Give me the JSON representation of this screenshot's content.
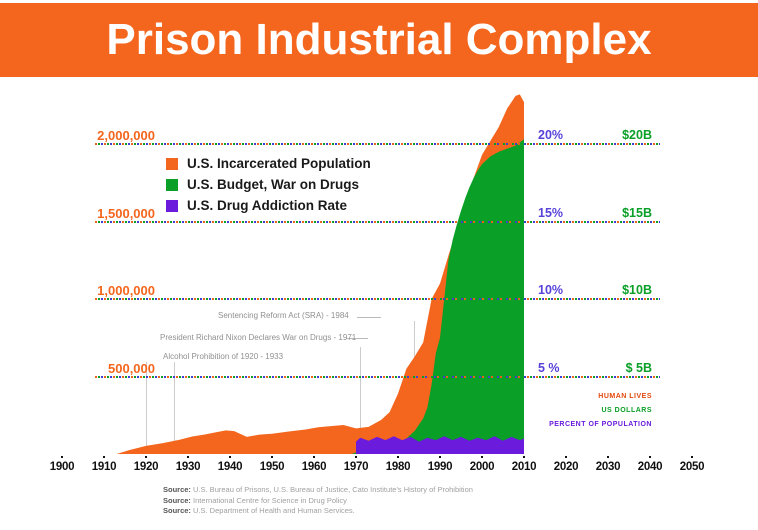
{
  "header": {
    "title": "Prison Industrial Complex",
    "banner_color": "#f4661d"
  },
  "legend": {
    "items": [
      {
        "label": "U.S. Incarcerated Population",
        "color": "#f4661d"
      },
      {
        "label": "U.S. Budget, War on Drugs",
        "color": "#0a9f27"
      },
      {
        "label": "U.S. Drug Addiction Rate",
        "color": "#6a1bdb"
      }
    ]
  },
  "axes": {
    "left_ticks": [
      "2,000,000",
      "1,500,000",
      "1,000,000",
      "500,000"
    ],
    "percent_ticks": [
      "20%",
      "15%",
      "10%",
      "5 %"
    ],
    "dollar_ticks": [
      "$20B",
      "$15B",
      "$10B",
      "$ 5B"
    ],
    "x_ticks": [
      "1900",
      "1910",
      "1920",
      "1930",
      "1940",
      "1950",
      "1960",
      "1970",
      "1980",
      "1990",
      "2000",
      "2010",
      "2020",
      "2030",
      "2040",
      "2050"
    ],
    "unit_labels": [
      {
        "text": "HUMAN LIVES",
        "color": "#e2470d"
      },
      {
        "text": "US DOLLARS",
        "color": "#0a9f27"
      },
      {
        "text": "PERCENT OF POPULATION",
        "color": "#6a1bdb"
      }
    ]
  },
  "annotations": [
    {
      "text": "Sentencing Reform Act (SRA) - 1984",
      "year": 1984
    },
    {
      "text": "President Richard Nixon Declares War on Drugs - 1971",
      "year": 1971
    },
    {
      "text": "Alcohol Prohibition of 1920 - 1933",
      "year_start": 1920,
      "year_end": 1933
    }
  ],
  "source_label": "Source:",
  "sources": [
    "U.S. Bureau of Prisons, U.S. Bureau of Justice, Cato Institute's History of Prohibition",
    "International Centre for Science in Drug Policy",
    "U.S. Department of Health and Human Services."
  ],
  "chart_data": {
    "type": "area",
    "title": "Prison Industrial Complex",
    "x_range": [
      1900,
      2050
    ],
    "x_tick_interval": 10,
    "grid": "horizontal dashed tricolor",
    "legend_position": "top-left inside plot",
    "axis_scales": {
      "population_ticks": [
        500000,
        1000000,
        1500000,
        2000000
      ],
      "percent_ticks": [
        5,
        10,
        15,
        20
      ],
      "dollar_ticks_billions": [
        5,
        10,
        15,
        20
      ],
      "note": "all three scales share the same gridlines"
    },
    "series": [
      {
        "name": "U.S. Incarcerated Population",
        "unit": "people",
        "color": "#f4661d",
        "per_gridline": 500000,
        "points": [
          [
            1913,
            0
          ],
          [
            1916,
            25000
          ],
          [
            1920,
            52000
          ],
          [
            1924,
            70000
          ],
          [
            1928,
            92000
          ],
          [
            1931,
            113000
          ],
          [
            1934,
            126000
          ],
          [
            1937,
            142000
          ],
          [
            1939,
            152000
          ],
          [
            1941,
            148000
          ],
          [
            1944,
            110000
          ],
          [
            1947,
            125000
          ],
          [
            1950,
            131000
          ],
          [
            1954,
            145000
          ],
          [
            1958,
            158000
          ],
          [
            1961,
            172000
          ],
          [
            1964,
            180000
          ],
          [
            1967,
            187000
          ],
          [
            1970,
            165000
          ],
          [
            1973,
            175000
          ],
          [
            1976,
            220000
          ],
          [
            1978,
            270000
          ],
          [
            1980,
            390000
          ],
          [
            1982,
            550000
          ],
          [
            1984,
            630000
          ],
          [
            1986,
            720000
          ],
          [
            1988,
            1000000
          ],
          [
            1990,
            1100000
          ],
          [
            1992,
            1280000
          ],
          [
            1994,
            1450000
          ],
          [
            1996,
            1620000
          ],
          [
            1998,
            1780000
          ],
          [
            2000,
            1930000
          ],
          [
            2002,
            2020000
          ],
          [
            2004,
            2110000
          ],
          [
            2006,
            2230000
          ],
          [
            2008,
            2310000
          ],
          [
            2009,
            2320000
          ],
          [
            2010,
            2270000
          ]
        ]
      },
      {
        "name": "U.S. Budget, War on Drugs",
        "unit": "USD billions",
        "color": "#0a9f27",
        "per_gridline": 5,
        "points": [
          [
            1969,
            0
          ],
          [
            1971,
            0.2
          ],
          [
            1974,
            0.3
          ],
          [
            1977,
            0.45
          ],
          [
            1980,
            0.6
          ],
          [
            1982,
            1.0
          ],
          [
            1984,
            1.5
          ],
          [
            1986,
            2.3
          ],
          [
            1987,
            3.0
          ],
          [
            1988,
            4.5
          ],
          [
            1989,
            6.5
          ],
          [
            1990,
            7.5
          ],
          [
            1991,
            10.0
          ],
          [
            1992,
            12.5
          ],
          [
            1993,
            13.8
          ],
          [
            1994,
            14.8
          ],
          [
            1995,
            15.7
          ],
          [
            1996,
            16.5
          ],
          [
            1997,
            17.2
          ],
          [
            1998,
            17.8
          ],
          [
            1999,
            18.3
          ],
          [
            2000,
            18.7
          ],
          [
            2002,
            19.2
          ],
          [
            2004,
            19.5
          ],
          [
            2006,
            19.7
          ],
          [
            2008,
            19.9
          ],
          [
            2010,
            20.3
          ]
        ]
      },
      {
        "name": "U.S. Drug Addiction Rate",
        "unit": "percent of population",
        "color": "#6a1bdb",
        "per_gridline": 5,
        "points": [
          [
            1970,
            0.8
          ],
          [
            1971,
            1.05
          ],
          [
            1973,
            0.85
          ],
          [
            1975,
            1.1
          ],
          [
            1977,
            0.9
          ],
          [
            1979,
            1.15
          ],
          [
            1981,
            0.9
          ],
          [
            1983,
            1.1
          ],
          [
            1985,
            0.8
          ],
          [
            1987,
            1.05
          ],
          [
            1989,
            0.9
          ],
          [
            1991,
            1.15
          ],
          [
            1993,
            0.9
          ],
          [
            1995,
            1.1
          ],
          [
            1997,
            0.85
          ],
          [
            1999,
            1.05
          ],
          [
            2001,
            0.9
          ],
          [
            2003,
            1.15
          ],
          [
            2005,
            0.85
          ],
          [
            2007,
            1.1
          ],
          [
            2009,
            0.9
          ],
          [
            2010,
            1.0
          ]
        ]
      }
    ]
  }
}
